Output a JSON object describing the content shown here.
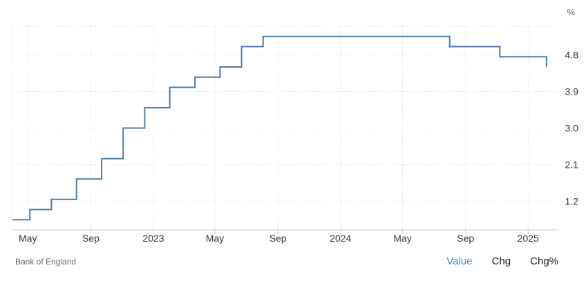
{
  "chart_data": {
    "type": "line",
    "step": true,
    "unit": "%",
    "source": "Bank of England",
    "x_ticks": [
      {
        "label": "May",
        "date": "2022-05-01"
      },
      {
        "label": "Sep",
        "date": "2022-09-01"
      },
      {
        "label": "2023",
        "date": "2023-01-01"
      },
      {
        "label": "May",
        "date": "2023-05-01"
      },
      {
        "label": "Sep",
        "date": "2023-09-01"
      },
      {
        "label": "2024",
        "date": "2024-01-01"
      },
      {
        "label": "May",
        "date": "2024-05-01"
      },
      {
        "label": "Sep",
        "date": "2024-09-01"
      },
      {
        "label": "2025",
        "date": "2025-01-01"
      }
    ],
    "y_ticks": [
      1.2,
      2.1,
      3.0,
      3.9,
      4.8
    ],
    "y_tick_labels": [
      "1.2",
      "2.1",
      "3.0",
      "3.9",
      "4.8"
    ],
    "ylim": [
      0.5,
      5.5
    ],
    "xlim": [
      "2022-04-01",
      "2025-03-01"
    ],
    "grid": true,
    "line_color": "#4d7aa6",
    "series": [
      {
        "points": [
          {
            "date": "2022-04-01",
            "value": 0.75
          },
          {
            "date": "2022-05-05",
            "value": 1.0
          },
          {
            "date": "2022-06-16",
            "value": 1.25
          },
          {
            "date": "2022-08-04",
            "value": 1.75
          },
          {
            "date": "2022-09-22",
            "value": 2.25
          },
          {
            "date": "2022-11-03",
            "value": 3.0
          },
          {
            "date": "2022-12-15",
            "value": 3.5
          },
          {
            "date": "2023-02-02",
            "value": 4.0
          },
          {
            "date": "2023-03-23",
            "value": 4.25
          },
          {
            "date": "2023-05-11",
            "value": 4.5
          },
          {
            "date": "2023-06-22",
            "value": 5.0
          },
          {
            "date": "2023-08-03",
            "value": 5.25
          },
          {
            "date": "2024-08-01",
            "value": 5.0
          },
          {
            "date": "2024-11-07",
            "value": 4.75
          },
          {
            "date": "2025-02-06",
            "value": 4.5
          }
        ],
        "end_date": "2025-02-06"
      }
    ]
  },
  "footer": {
    "source_label": "Bank of England",
    "toggles": [
      "Value",
      "Chg",
      "Chg%"
    ],
    "active_toggle": "Value"
  }
}
